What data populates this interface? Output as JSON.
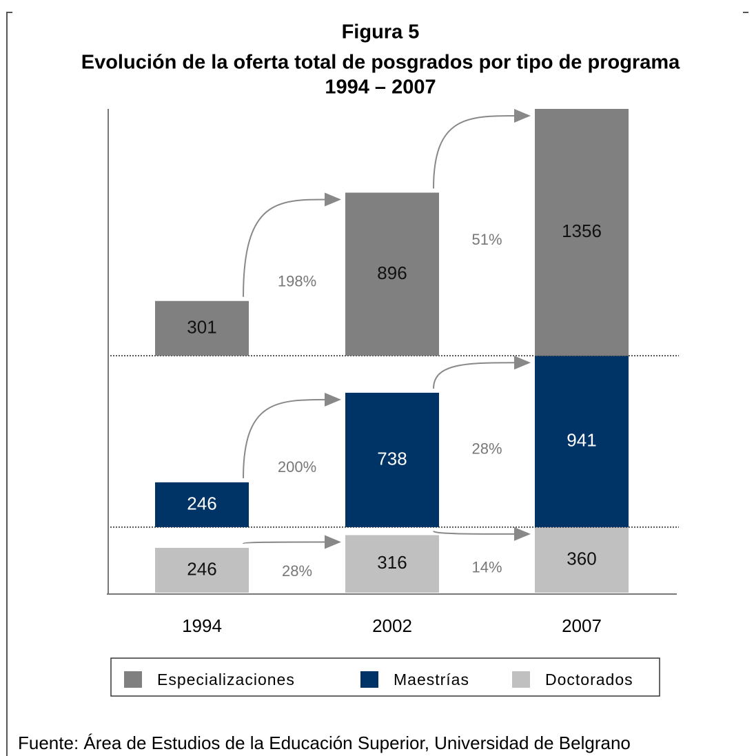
{
  "chart_data": {
    "type": "bar",
    "layout": "panels",
    "title": [
      "Figura 5",
      "Evolución de la oferta total de posgrados por tipo de programa",
      "1994 – 2007"
    ],
    "categories": [
      "1994",
      "2002",
      "2007"
    ],
    "series": [
      {
        "name": "Especializaciones",
        "color": "#808080",
        "values": [
          301,
          896,
          1356
        ],
        "changes": [
          {
            "value": 198,
            "label": "198%"
          },
          {
            "value": 51,
            "label": "51%"
          }
        ]
      },
      {
        "name": "Maestrías",
        "color": "#003366",
        "values": [
          246,
          738,
          941
        ],
        "changes": [
          {
            "value": 200,
            "label": "200%"
          },
          {
            "value": 28,
            "label": "28%"
          }
        ]
      },
      {
        "name": "Doctorados",
        "color": "#c0c0c0",
        "values": [
          246,
          316,
          360
        ],
        "changes": [
          {
            "value": 28,
            "label": "28%"
          },
          {
            "value": 14,
            "label": "14%"
          }
        ]
      }
    ],
    "source": "Fuente: Área de Estudios de la Educación Superior, Universidad de Belgrano"
  }
}
